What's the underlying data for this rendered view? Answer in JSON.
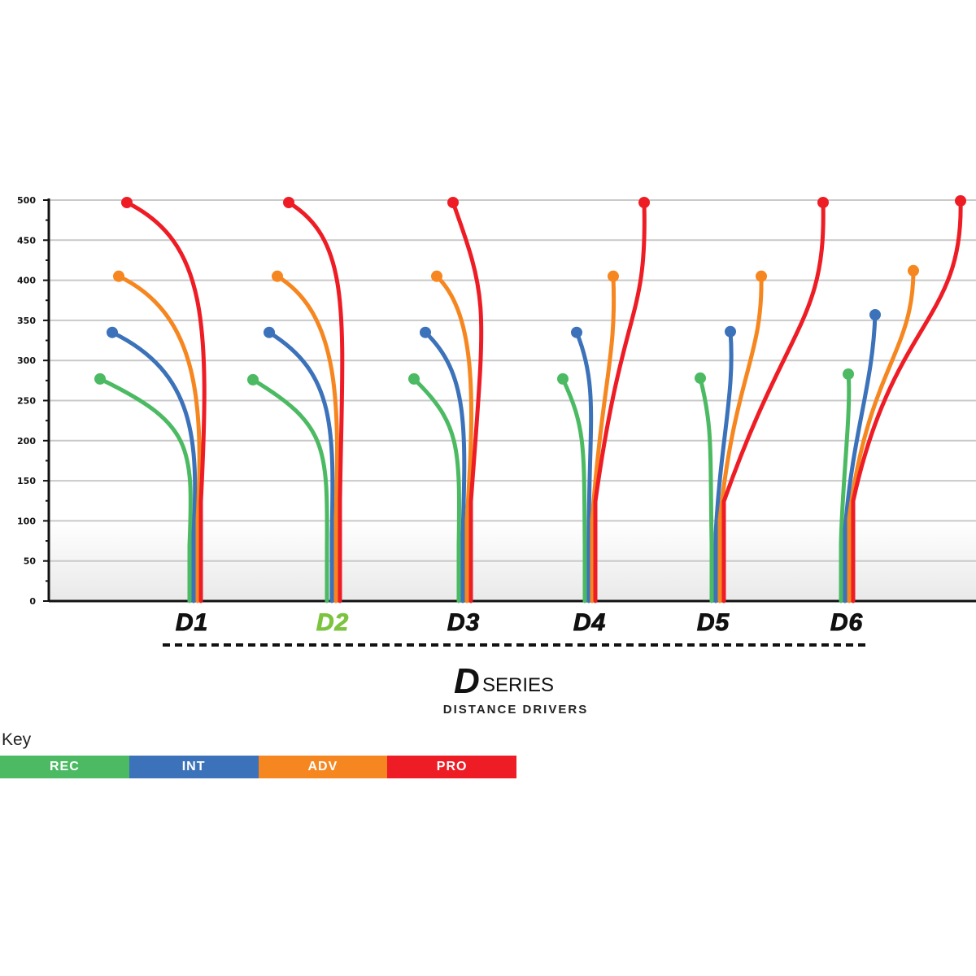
{
  "chart_data": {
    "type": "line",
    "y_ticks": [
      "0",
      "50",
      "100",
      "150",
      "200",
      "250",
      "300",
      "350",
      "400",
      "450",
      "500"
    ],
    "ylim": [
      0,
      500
    ],
    "categories": [
      "D1",
      "D2",
      "D3",
      "D4",
      "D5",
      "D6"
    ],
    "highlight_category": "D2",
    "series": [
      {
        "name": "REC",
        "color": "#4cba63",
        "values": [
          277,
          276,
          277,
          277,
          278,
          283
        ]
      },
      {
        "name": "INT",
        "color": "#3b72ba",
        "values": [
          335,
          335,
          335,
          335,
          336,
          357
        ]
      },
      {
        "name": "ADV",
        "color": "#f6861f",
        "values": [
          405,
          405,
          405,
          405,
          405,
          412
        ]
      },
      {
        "name": "PRO",
        "color": "#ee1c25",
        "values": [
          497,
          497,
          497,
          497,
          497,
          499
        ]
      }
    ],
    "grid": true
  },
  "branding": {
    "logo_letter": "D",
    "logo_word": "SERIES",
    "subtitle": "DISTANCE DRIVERS"
  },
  "key": {
    "title": "Key",
    "items": [
      {
        "label": "REC",
        "color": "#4cba63"
      },
      {
        "label": "INT",
        "color": "#3b72ba"
      },
      {
        "label": "ADV",
        "color": "#f6861f"
      },
      {
        "label": "PRO",
        "color": "#ee1c25"
      }
    ]
  }
}
